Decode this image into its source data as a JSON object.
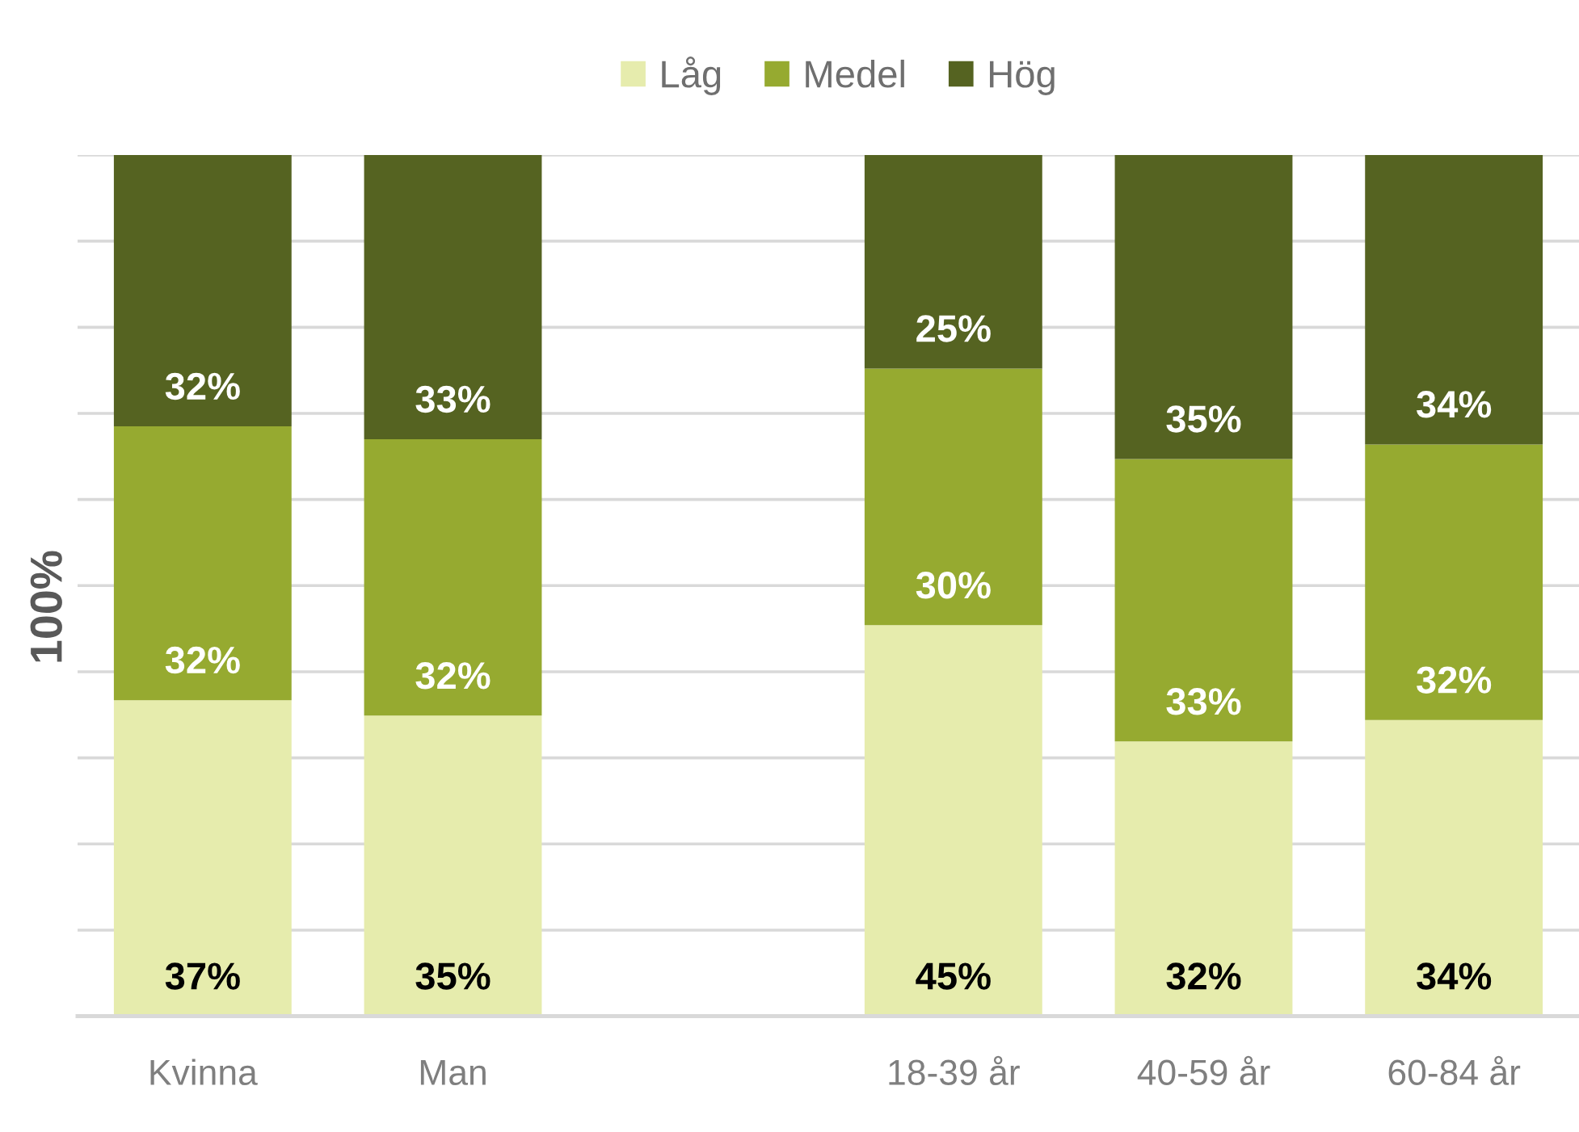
{
  "chart_data": {
    "type": "bar",
    "stacked": true,
    "ylabel": "100%",
    "categories": [
      "Kvinna",
      "Man",
      null,
      "18-39 år",
      "40-59 år",
      "60-84 år"
    ],
    "series": [
      {
        "name": "Låg",
        "color": "#e6ecad",
        "values": [
          36.7,
          34.9,
          null,
          45.4,
          31.9,
          34.4
        ],
        "value_labels": [
          "37%",
          "35%",
          null,
          "45%",
          "32%",
          "34%"
        ]
      },
      {
        "name": "Medel",
        "color": "#96aa30",
        "values": [
          31.8,
          32.1,
          null,
          29.8,
          32.8,
          32.0
        ],
        "value_labels": [
          "32%",
          "32%",
          null,
          "30%",
          "33%",
          "32%"
        ]
      },
      {
        "name": "Hög",
        "color": "#556321",
        "values": [
          31.5,
          33.0,
          null,
          24.8,
          35.3,
          33.6
        ],
        "value_labels": [
          "32%",
          "33%",
          null,
          "25%",
          "35%",
          "34%"
        ]
      }
    ],
    "ylim": [
      0,
      100
    ],
    "yticks": [
      {
        "value": 0,
        "label": null
      },
      {
        "value": 10,
        "label": null
      },
      {
        "value": 20,
        "label": null
      },
      {
        "value": 30,
        "label": null
      },
      {
        "value": 40,
        "label": null
      },
      {
        "value": 50,
        "label": null
      },
      {
        "value": 60,
        "label": null
      },
      {
        "value": 70,
        "label": null
      },
      {
        "value": 80,
        "label": null
      },
      {
        "value": 90,
        "label": null
      },
      {
        "value": 100,
        "label": null
      }
    ],
    "grid": "y",
    "legend": "top",
    "tick_labels": "x"
  }
}
